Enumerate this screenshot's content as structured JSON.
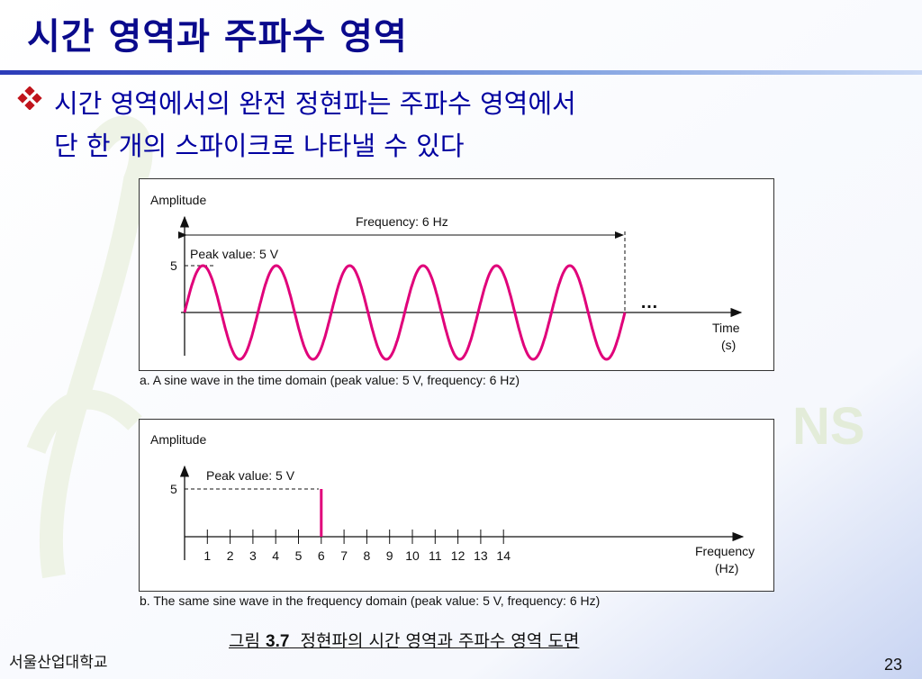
{
  "slide": {
    "title": "시간 영역과 주파수 영역",
    "bullet_line1": "시간 영역에서의 완전 정현파는 주파수 영역에서",
    "bullet_line2": "단 한 개의 스파이크로 나타낼 수 있다",
    "figure_caption_prefix": "그림 ",
    "figure_caption_number": "3.7",
    "figure_caption_suffix": "  정현파의 시간 영역과 주파수 영역 도면",
    "footer_left": "서울산업대학교",
    "page_number": "23",
    "watermark": "NS"
  },
  "chart_data": [
    {
      "type": "line",
      "ylabel": "Amplitude",
      "xlabel": "Time",
      "xlabel_unit": "(s)",
      "y_tick": "5",
      "frequency_label": "Frequency: 6 Hz",
      "peak_label": "Peak value: 5 V",
      "continuation": "…",
      "caption": "a. A sine wave in the time domain (peak value: 5 V, frequency: 6 Hz)",
      "peak_value": 5,
      "frequency_hz": 6,
      "x_range": [
        0,
        1
      ],
      "y_range": [
        -5,
        5
      ],
      "series_color": "#e0007a"
    },
    {
      "type": "bar",
      "ylabel": "Amplitude",
      "xlabel": "Frequency",
      "xlabel_unit": "(Hz)",
      "y_tick": "5",
      "peak_label": "Peak value: 5 V",
      "caption": "b. The same sine wave in the frequency domain (peak value: 5 V, frequency: 6 Hz)",
      "categories": [
        "1",
        "2",
        "3",
        "4",
        "5",
        "6",
        "7",
        "8",
        "9",
        "10",
        "11",
        "12",
        "13",
        "14"
      ],
      "spike": {
        "x": 6,
        "value": 5
      },
      "series_color": "#e0007a"
    }
  ],
  "colors": {
    "title": "#0a0a8c",
    "bullet_text": "#0000a0",
    "bullet_icon": "#c0141c",
    "rule": "#2b3bb8"
  }
}
